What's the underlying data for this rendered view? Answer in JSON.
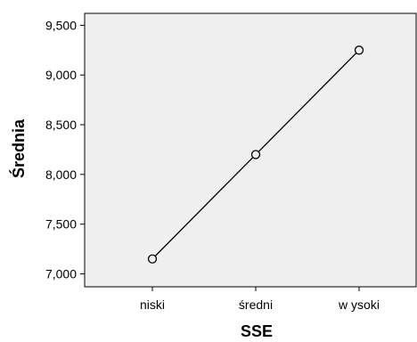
{
  "chart_data": {
    "type": "line",
    "title": "",
    "xlabel": "SSE",
    "ylabel": "Średnia",
    "categories": [
      "niski",
      "średni",
      "w ysoki"
    ],
    "series": [
      {
        "values": [
          7.15,
          8.2,
          9.25
        ]
      }
    ],
    "ylim": [
      6.87,
      9.62
    ],
    "y_ticks": [
      7.0,
      7.5,
      8.0,
      8.5,
      9.0,
      9.5
    ],
    "y_tick_labels": [
      "7,000",
      "7,500",
      "8,000",
      "8,500",
      "9,000",
      "9,500"
    ],
    "grid": false,
    "marker": "open-circle",
    "colors": {
      "plot_background": "#efefef",
      "line": "#000000",
      "marker_fill": "#efefef"
    }
  }
}
